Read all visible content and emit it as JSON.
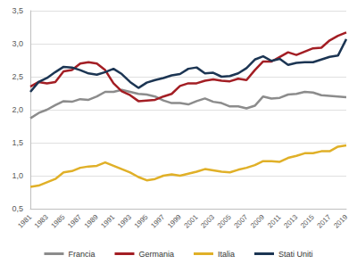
{
  "chart_data": {
    "type": "line",
    "categories": [
      "1981",
      null,
      "1983",
      null,
      "1985",
      null,
      "1987",
      null,
      "1989",
      null,
      "1991",
      null,
      "1993",
      null,
      "1995",
      null,
      "1997",
      null,
      "1999",
      null,
      "2001",
      null,
      "2003",
      null,
      "2005",
      null,
      "2007",
      null,
      "2009",
      null,
      "2011",
      null,
      "2013",
      null,
      "2015",
      null,
      "2017",
      null,
      "2019"
    ],
    "series": [
      {
        "name": "Francia",
        "color": "#8c8c8c",
        "values": [
          1.87,
          1.95,
          2.0,
          2.07,
          2.13,
          2.12,
          2.16,
          2.15,
          2.2,
          2.27,
          2.27,
          2.3,
          2.27,
          2.24,
          2.23,
          2.2,
          2.14,
          2.1,
          2.1,
          2.08,
          2.13,
          2.17,
          2.12,
          2.1,
          2.05,
          2.05,
          2.02,
          2.06,
          2.2,
          2.17,
          2.18,
          2.23,
          2.24,
          2.27,
          2.26,
          2.22,
          2.21,
          2.2,
          2.19
        ]
      },
      {
        "name": "Germania",
        "color": "#a31e24",
        "values": [
          2.35,
          2.42,
          2.4,
          2.42,
          2.58,
          2.6,
          2.7,
          2.72,
          2.7,
          2.6,
          2.4,
          2.28,
          2.22,
          2.13,
          2.14,
          2.15,
          2.2,
          2.24,
          2.36,
          2.4,
          2.4,
          2.44,
          2.46,
          2.44,
          2.43,
          2.47,
          2.45,
          2.6,
          2.73,
          2.73,
          2.8,
          2.87,
          2.83,
          2.88,
          2.93,
          2.94,
          3.05,
          3.12,
          3.17
        ]
      },
      {
        "name": "Italia",
        "color": "#e0b028",
        "values": [
          0.83,
          0.85,
          0.9,
          0.95,
          1.05,
          1.07,
          1.12,
          1.14,
          1.15,
          1.2,
          1.15,
          1.1,
          1.05,
          0.98,
          0.93,
          0.95,
          1.0,
          1.02,
          1.0,
          1.03,
          1.06,
          1.1,
          1.08,
          1.06,
          1.05,
          1.09,
          1.12,
          1.16,
          1.22,
          1.22,
          1.21,
          1.27,
          1.3,
          1.34,
          1.34,
          1.37,
          1.37,
          1.44,
          1.46
        ]
      },
      {
        "name": "Stati Uniti",
        "color": "#1c3553",
        "values": [
          2.27,
          2.42,
          2.48,
          2.57,
          2.65,
          2.64,
          2.6,
          2.55,
          2.53,
          2.57,
          2.62,
          2.54,
          2.42,
          2.33,
          2.41,
          2.45,
          2.48,
          2.52,
          2.54,
          2.62,
          2.64,
          2.55,
          2.56,
          2.5,
          2.51,
          2.55,
          2.63,
          2.76,
          2.81,
          2.74,
          2.77,
          2.68,
          2.71,
          2.72,
          2.72,
          2.76,
          2.8,
          2.82,
          3.07
        ]
      }
    ],
    "ylim": [
      0.5,
      3.5
    ],
    "yticks": [
      {
        "value": 0.5,
        "label": "0,5"
      },
      {
        "value": 1.0,
        "label": "1,0"
      },
      {
        "value": 1.5,
        "label": "1,5"
      },
      {
        "value": 2.0,
        "label": "2,0"
      },
      {
        "value": 2.5,
        "label": "2,5"
      },
      {
        "value": 3.0,
        "label": "3,0"
      },
      {
        "value": 3.5,
        "label": "3,5"
      }
    ],
    "grid": true,
    "legend": "bottom"
  }
}
